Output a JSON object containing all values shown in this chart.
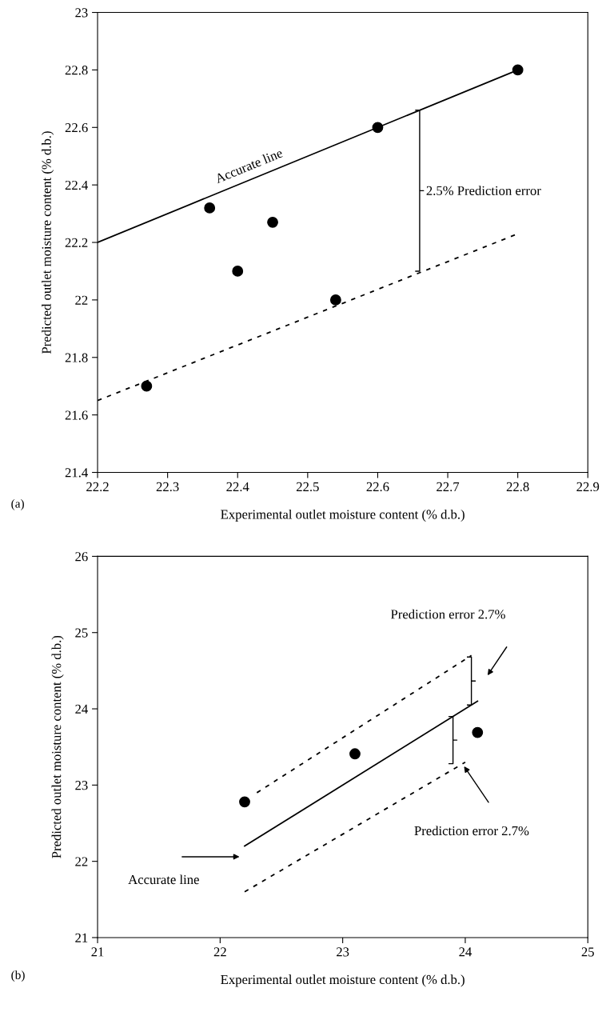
{
  "chart_data": [
    {
      "type": "scatter",
      "xlabel": "Experimental outlet moisture content (% d.b.)",
      "ylabel": "Predicted outlet moisture content (% d.b.)",
      "xlim": [
        22.2,
        22.9
      ],
      "ylim": [
        21.4,
        23
      ],
      "xticks": [
        22.2,
        22.3,
        22.4,
        22.5,
        22.6,
        22.7,
        22.8,
        22.9
      ],
      "yticks": [
        21.4,
        21.6,
        21.8,
        22,
        22.2,
        22.4,
        22.6,
        22.8,
        23
      ],
      "series": [
        {
          "marker": "circle",
          "color": "#000000",
          "x": [
            22.27,
            22.36,
            22.4,
            22.45,
            22.54,
            22.6,
            22.8
          ],
          "values": [
            21.7,
            22.32,
            22.1,
            22.27,
            22.0,
            22.6,
            22.8
          ]
        },
        {
          "type": "line",
          "color": "#000000",
          "line_style": "solid",
          "x": [
            22.2,
            22.8
          ],
          "values": [
            22.2,
            22.8
          ]
        },
        {
          "type": "line",
          "color": "#000000",
          "line_style": "dashed",
          "x": [
            22.2,
            22.8
          ],
          "values": [
            21.65,
            22.23
          ]
        }
      ],
      "annotations": [
        {
          "text": "Accurate line",
          "x": 22.42,
          "y": 22.42
        },
        "2.5% Prediction error",
        "(a)"
      ]
    },
    {
      "type": "scatter",
      "xlabel": "Experimental outlet moisture content (% d.b.)",
      "ylabel": "Predicted outlet moisture content (% d.b.)",
      "xlim": [
        21,
        25
      ],
      "ylim": [
        21,
        26
      ],
      "xticks": [
        21,
        22,
        23,
        24,
        25
      ],
      "yticks": [
        21,
        22,
        23,
        24,
        25,
        26
      ],
      "series": [
        {
          "marker": "circle",
          "color": "#000000",
          "x": [
            22.2,
            23.1,
            24.1
          ],
          "values": [
            22.78,
            23.41,
            23.69
          ]
        },
        {
          "type": "line",
          "color": "#000000",
          "line_style": "solid",
          "x": [
            22.2,
            24.1
          ],
          "values": [
            22.2,
            24.1
          ]
        },
        {
          "type": "line",
          "color": "#000000",
          "line_style": "dashed",
          "x": [
            22.3,
            24.05
          ],
          "values": [
            22.9,
            24.7
          ]
        },
        {
          "type": "line",
          "color": "#000000",
          "line_style": "dashed",
          "x": [
            22.2,
            24.0
          ],
          "values": [
            21.6,
            23.3
          ]
        }
      ],
      "annotations": [
        "Prediction error 2.7%",
        "Prediction error 2.7%",
        "Accurate line",
        "(b)"
      ]
    }
  ]
}
